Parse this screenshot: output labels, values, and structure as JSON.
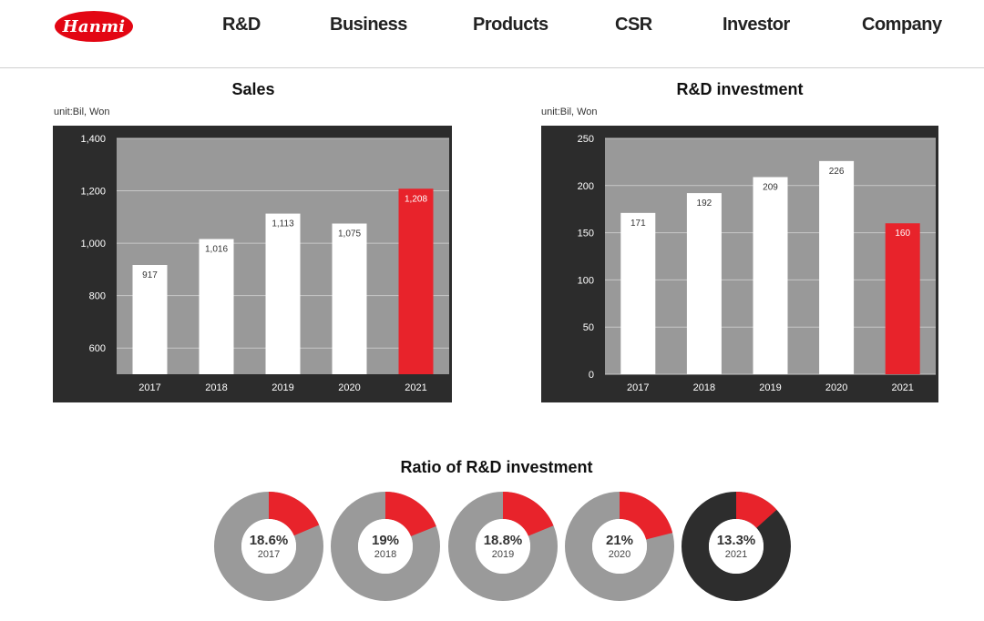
{
  "header": {
    "logo_text": "Hanmi",
    "nav": [
      "R&D",
      "Business",
      "Products",
      "CSR",
      "Investor",
      "Company"
    ]
  },
  "colors": {
    "accent": "#e8232b",
    "chart_bg": "#2c2c2c",
    "plot_bg": "#999999",
    "donut_gray": "#9a9a9a",
    "donut_dark": "#2d2d2d"
  },
  "ratio_section": {
    "title": "Ratio of R&D investment"
  },
  "chart_data": [
    {
      "type": "bar",
      "title": "Sales",
      "unit": "unit:Bil, Won",
      "categories": [
        "2017",
        "2018",
        "2019",
        "2020",
        "2021"
      ],
      "values": [
        917,
        1016,
        1113,
        1075,
        1208
      ],
      "data_labels": [
        "917",
        "1,016",
        "1,113",
        "1,075",
        "1,208"
      ],
      "yticks": [
        "1,400",
        "1,200",
        "1,000",
        "800",
        "600"
      ],
      "ylim": [
        500,
        1400
      ],
      "highlight_index": 4,
      "grid": true
    },
    {
      "type": "bar",
      "title": "R&D investment",
      "unit": "unit:Bil, Won",
      "categories": [
        "2017",
        "2018",
        "2019",
        "2020",
        "2021"
      ],
      "values": [
        171,
        192,
        209,
        226,
        160
      ],
      "data_labels": [
        "171",
        "192",
        "209",
        "226",
        "160"
      ],
      "yticks": [
        "250",
        "200",
        "150",
        "100",
        "50",
        "0"
      ],
      "ylim": [
        0,
        250
      ],
      "highlight_index": 4,
      "grid": true
    },
    {
      "type": "pie",
      "title": "Ratio of R&D investment",
      "items": [
        {
          "label": "18.6%",
          "year": "2017",
          "value": 18.6,
          "dark": false
        },
        {
          "label": "19%",
          "year": "2018",
          "value": 19.0,
          "dark": false
        },
        {
          "label": "18.8%",
          "year": "2019",
          "value": 18.8,
          "dark": false
        },
        {
          "label": "21%",
          "year": "2020",
          "value": 21.0,
          "dark": false
        },
        {
          "label": "13.3%",
          "year": "2021",
          "value": 13.3,
          "dark": true
        }
      ]
    }
  ]
}
